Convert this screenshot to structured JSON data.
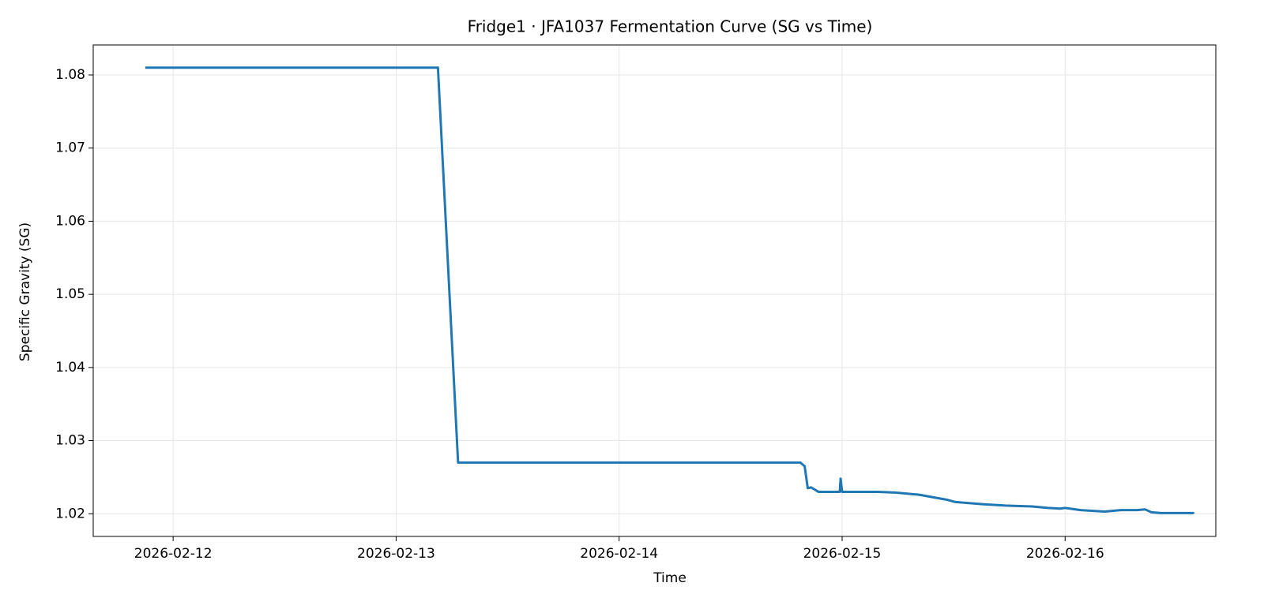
{
  "chart_data": {
    "type": "line",
    "title": "Fridge1 · JFA1037 Fermentation Curve (SG vs Time)",
    "x_label": "Time",
    "y_label": "Specific Gravity (SG)",
    "color": "#1f77b4",
    "grid": true,
    "x": [
      "2026-02-11T21:00",
      "2026-02-13T04:30",
      "2026-02-13T06:40",
      "2026-02-14T19:30",
      "2026-02-14T19:58",
      "2026-02-14T20:18",
      "2026-02-14T20:40",
      "2026-02-14T21:27",
      "2026-02-14T23:45",
      "2026-02-14T23:50",
      "2026-02-15T00:00",
      "2026-02-15T03:49",
      "2026-02-15T05:41",
      "2026-02-15T07:25",
      "2026-02-15T08:17",
      "2026-02-15T10:02",
      "2026-02-15T11:20",
      "2026-02-15T12:12",
      "2026-02-15T15:14",
      "2026-02-15T17:50",
      "2026-02-15T20:26",
      "2026-02-15T22:10",
      "2026-02-15T23:28",
      "2026-02-16T00:00",
      "2026-02-16T01:39",
      "2026-02-16T04:15",
      "2026-02-16T06:00",
      "2026-02-16T07:44",
      "2026-02-16T08:36",
      "2026-02-16T09:17",
      "2026-02-16T10:19",
      "2026-02-16T13:48",
      "2026-02-16T13:50"
    ],
    "values": [
      1.081,
      1.081,
      1.027,
      1.027,
      1.0265,
      1.0235,
      1.0236,
      1.023,
      1.023,
      1.0248,
      1.023,
      1.023,
      1.0229,
      1.0227,
      1.0226,
      1.0222,
      1.0219,
      1.0216,
      1.0213,
      1.0211,
      1.021,
      1.0208,
      1.0207,
      1.0208,
      1.0205,
      1.0203,
      1.0205,
      1.0205,
      1.0206,
      1.0202,
      1.0201,
      1.0201,
      1.02
    ],
    "xlim": [
      "2026-02-11T15:24",
      "2026-02-16T16:13"
    ],
    "xticks": [
      "2026-02-12",
      "2026-02-13",
      "2026-02-14",
      "2026-02-15",
      "2026-02-16"
    ],
    "ylim": [
      1.0169,
      1.0841
    ],
    "yticks": [
      1.02,
      1.03,
      1.04,
      1.05,
      1.06,
      1.07,
      1.08
    ]
  }
}
